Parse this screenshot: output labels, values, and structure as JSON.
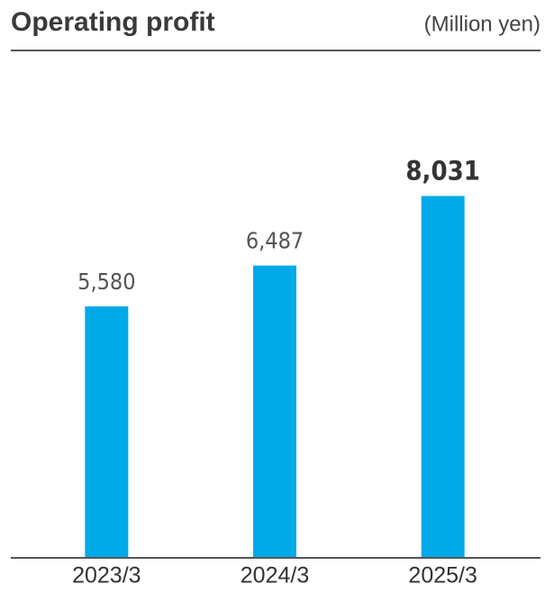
{
  "chart_data": {
    "type": "bar",
    "title": "Operating profit",
    "unit": "(Million yen)",
    "categories": [
      "2023/3",
      "2024/3",
      "2025/3"
    ],
    "values": [
      5580,
      6487,
      8031
    ],
    "value_labels": [
      "5,580",
      "6,487",
      "8,031"
    ],
    "color": "#00a9e8",
    "ylim": [
      0,
      10000
    ]
  }
}
